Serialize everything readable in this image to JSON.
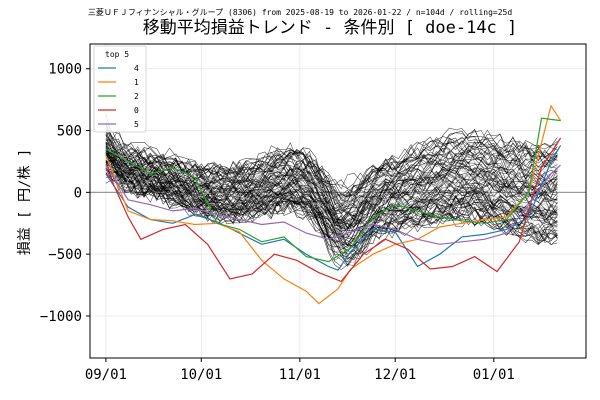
{
  "chart_data": {
    "type": "line",
    "supertitle": "三菱ＵＦＪフィナンシャル・グループ (8306) from 2025-08-19 to 2026-01-22 / n=104d / rolling=25d",
    "title": "移動平均損益トレンド - 条件別 [ doe-14c ]",
    "xlabel": "",
    "ylabel": "損益 [ 円/株 ]",
    "ylim": [
      -1340,
      1200
    ],
    "xlim": [
      "2025-08-27",
      "2026-01-30"
    ],
    "x_ticks": [
      "2025-09-01",
      "2025-10-01",
      "2025-11-01",
      "2025-12-01",
      "2026-01-01"
    ],
    "x_tick_labels": [
      "09/01",
      "10/01",
      "11/01",
      "12/01",
      "01/01"
    ],
    "y_ticks": [
      -1000,
      -500,
      0,
      500,
      1000
    ],
    "y_tick_labels": [
      "−1000",
      "−500",
      "0",
      "500",
      "1000"
    ],
    "grid": true,
    "zero_line": true,
    "legend": {
      "title": "top 5",
      "placement": "top-left",
      "entries": [
        {
          "label": "4",
          "color": "#1f77b4"
        },
        {
          "label": "1",
          "color": "#ff7f0e"
        },
        {
          "label": "2",
          "color": "#2ca02c"
        },
        {
          "label": "0",
          "color": "#d62728"
        },
        {
          "label": "5",
          "color": "#9467bd"
        }
      ]
    },
    "background_series_note_color": "#000000",
    "highlight_series": [
      {
        "name": "4",
        "color": "#1f77b4",
        "points": [
          [
            "2025-09-01",
            150
          ],
          [
            "2025-09-08",
            -120
          ],
          [
            "2025-09-15",
            -220
          ],
          [
            "2025-09-22",
            -250
          ],
          [
            "2025-09-29",
            -180
          ],
          [
            "2025-10-06",
            -240
          ],
          [
            "2025-10-13",
            -330
          ],
          [
            "2025-10-20",
            -420
          ],
          [
            "2025-10-27",
            -380
          ],
          [
            "2025-11-03",
            -500
          ],
          [
            "2025-11-10",
            -600
          ],
          [
            "2025-11-13",
            -630
          ],
          [
            "2025-11-17",
            -480
          ],
          [
            "2025-11-24",
            -300
          ],
          [
            "2025-12-01",
            -320
          ],
          [
            "2025-12-08",
            -600
          ],
          [
            "2025-12-15",
            -500
          ],
          [
            "2025-12-22",
            -360
          ],
          [
            "2025-12-29",
            -340
          ],
          [
            "2026-01-05",
            -300
          ],
          [
            "2026-01-12",
            -200
          ],
          [
            "2026-01-19",
            250
          ],
          [
            "2026-01-22",
            380
          ]
        ]
      },
      {
        "name": "1",
        "color": "#ff7f0e",
        "points": [
          [
            "2025-09-01",
            300
          ],
          [
            "2025-09-08",
            -150
          ],
          [
            "2025-09-15",
            -220
          ],
          [
            "2025-09-22",
            -230
          ],
          [
            "2025-09-29",
            -260
          ],
          [
            "2025-10-06",
            -250
          ],
          [
            "2025-10-13",
            -320
          ],
          [
            "2025-10-20",
            -550
          ],
          [
            "2025-10-27",
            -700
          ],
          [
            "2025-11-03",
            -800
          ],
          [
            "2025-11-07",
            -900
          ],
          [
            "2025-11-13",
            -780
          ],
          [
            "2025-11-17",
            -620
          ],
          [
            "2025-11-24",
            -500
          ],
          [
            "2025-12-01",
            -420
          ],
          [
            "2025-12-08",
            -380
          ],
          [
            "2025-12-15",
            -280
          ],
          [
            "2025-12-22",
            -250
          ],
          [
            "2025-12-29",
            -220
          ],
          [
            "2026-01-05",
            -200
          ],
          [
            "2026-01-12",
            0
          ],
          [
            "2026-01-19",
            700
          ],
          [
            "2026-01-22",
            580
          ]
        ]
      },
      {
        "name": "2",
        "color": "#2ca02c",
        "points": [
          [
            "2025-09-01",
            350
          ],
          [
            "2025-09-08",
            250
          ],
          [
            "2025-09-15",
            150
          ],
          [
            "2025-09-22",
            200
          ],
          [
            "2025-09-29",
            120
          ],
          [
            "2025-10-06",
            -250
          ],
          [
            "2025-10-13",
            -300
          ],
          [
            "2025-10-20",
            -400
          ],
          [
            "2025-10-27",
            -360
          ],
          [
            "2025-11-03",
            -520
          ],
          [
            "2025-11-10",
            -560
          ],
          [
            "2025-11-17",
            -450
          ],
          [
            "2025-11-24",
            -200
          ],
          [
            "2025-12-01",
            -100
          ],
          [
            "2025-12-08",
            -150
          ],
          [
            "2025-12-15",
            -200
          ],
          [
            "2025-12-22",
            -230
          ],
          [
            "2025-12-29",
            -250
          ],
          [
            "2026-01-05",
            -220
          ],
          [
            "2026-01-12",
            0
          ],
          [
            "2026-01-16",
            600
          ],
          [
            "2026-01-22",
            580
          ]
        ]
      },
      {
        "name": "0",
        "color": "#d62728",
        "points": [
          [
            "2025-09-01",
            200
          ],
          [
            "2025-09-08",
            -200
          ],
          [
            "2025-09-12",
            -380
          ],
          [
            "2025-09-19",
            -300
          ],
          [
            "2025-09-26",
            -260
          ],
          [
            "2025-10-03",
            -420
          ],
          [
            "2025-10-10",
            -700
          ],
          [
            "2025-10-17",
            -660
          ],
          [
            "2025-10-24",
            -500
          ],
          [
            "2025-10-31",
            -550
          ],
          [
            "2025-11-07",
            -650
          ],
          [
            "2025-11-14",
            -720
          ],
          [
            "2025-11-21",
            -500
          ],
          [
            "2025-11-28",
            -380
          ],
          [
            "2025-12-05",
            -460
          ],
          [
            "2025-12-12",
            -620
          ],
          [
            "2025-12-19",
            -600
          ],
          [
            "2025-12-26",
            -520
          ],
          [
            "2026-01-02",
            -640
          ],
          [
            "2026-01-09",
            -400
          ],
          [
            "2026-01-16",
            200
          ],
          [
            "2026-01-22",
            440
          ]
        ]
      },
      {
        "name": "5",
        "color": "#9467bd",
        "points": [
          [
            "2025-09-01",
            220
          ],
          [
            "2025-09-08",
            -60
          ],
          [
            "2025-09-15",
            -100
          ],
          [
            "2025-09-22",
            -150
          ],
          [
            "2025-09-29",
            -130
          ],
          [
            "2025-10-06",
            -180
          ],
          [
            "2025-10-13",
            -220
          ],
          [
            "2025-10-20",
            -260
          ],
          [
            "2025-10-27",
            -240
          ],
          [
            "2025-11-03",
            -330
          ],
          [
            "2025-11-10",
            -380
          ],
          [
            "2025-11-17",
            -320
          ],
          [
            "2025-11-24",
            -260
          ],
          [
            "2025-12-01",
            -300
          ],
          [
            "2025-12-08",
            -380
          ],
          [
            "2025-12-15",
            -420
          ],
          [
            "2025-12-22",
            -400
          ],
          [
            "2025-12-29",
            -380
          ],
          [
            "2026-01-05",
            -330
          ],
          [
            "2026-01-12",
            -100
          ],
          [
            "2026-01-19",
            150
          ],
          [
            "2026-01-22",
            220
          ]
        ]
      }
    ]
  }
}
